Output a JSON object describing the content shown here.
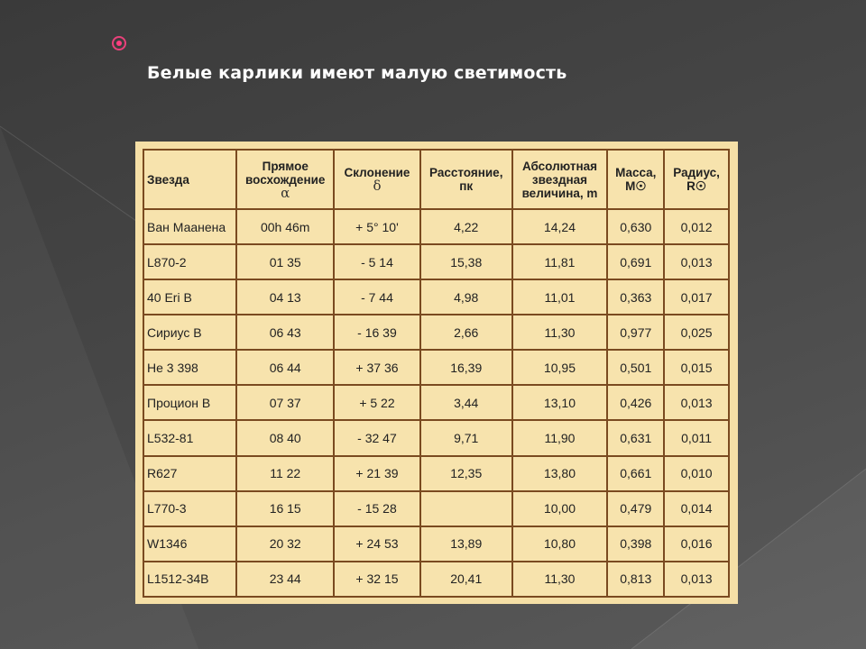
{
  "slide": {
    "title": "Белые карлики имеют малую светимость",
    "bullet_icon": "pink-circle-bullet",
    "accent_color": "#ff3d7f",
    "background_color": "#474747"
  },
  "table": {
    "headers": {
      "star": "Звезда",
      "ra": "Прямое восхождение",
      "ra_symbol": "α",
      "dec": "Склонение",
      "dec_symbol": "δ",
      "distance": "Расстояние, пк",
      "abs_mag": "Абсолютная звездная величина, m",
      "mass": "Масса, M☉",
      "radius": "Радиус, R☉"
    },
    "rows": [
      {
        "star": "Ван Маанена",
        "ra": "00h 46m",
        "dec": "+ 5° 10'",
        "distance": "4,22",
        "abs_mag": "14,24",
        "mass": "0,630",
        "radius": "0,012"
      },
      {
        "star": "L870-2",
        "ra": "01 35",
        "dec": "- 5 14",
        "distance": "15,38",
        "abs_mag": "11,81",
        "mass": "0,691",
        "radius": "0,013"
      },
      {
        "star": "40 Eri B",
        "ra": "04 13",
        "dec": "- 7 44",
        "distance": "4,98",
        "abs_mag": "11,01",
        "mass": "0,363",
        "radius": "0,017"
      },
      {
        "star": "Сириус B",
        "ra": "06 43",
        "dec": "- 16 39",
        "distance": "2,66",
        "abs_mag": "11,30",
        "mass": "0,977",
        "radius": "0,025"
      },
      {
        "star": "He 3 398",
        "ra": "06 44",
        "dec": "+ 37 36",
        "distance": "16,39",
        "abs_mag": "10,95",
        "mass": "0,501",
        "radius": "0,015"
      },
      {
        "star": "Процион B",
        "ra": "07 37",
        "dec": "+ 5 22",
        "distance": "3,44",
        "abs_mag": "13,10",
        "mass": "0,426",
        "radius": "0,013"
      },
      {
        "star": "L532-81",
        "ra": "08 40",
        "dec": "- 32 47",
        "distance": "9,71",
        "abs_mag": "11,90",
        "mass": "0,631",
        "radius": "0,011"
      },
      {
        "star": "R627",
        "ra": "11 22",
        "dec": "+ 21 39",
        "distance": "12,35",
        "abs_mag": "13,80",
        "mass": "0,661",
        "radius": "0,010"
      },
      {
        "star": "L770-3",
        "ra": "16 15",
        "dec": "- 15 28",
        "distance": "",
        "abs_mag": "10,00",
        "mass": "0,479",
        "radius": "0,014"
      },
      {
        "star": "W1346",
        "ra": "20 32",
        "dec": "+ 24 53",
        "distance": "13,89",
        "abs_mag": "10,80",
        "mass": "0,398",
        "radius": "0,016"
      },
      {
        "star": "L1512-34B",
        "ra": "23 44",
        "dec": "+ 32 15",
        "distance": "20,41",
        "abs_mag": "11,30",
        "mass": "0,813",
        "radius": "0,013"
      }
    ]
  }
}
